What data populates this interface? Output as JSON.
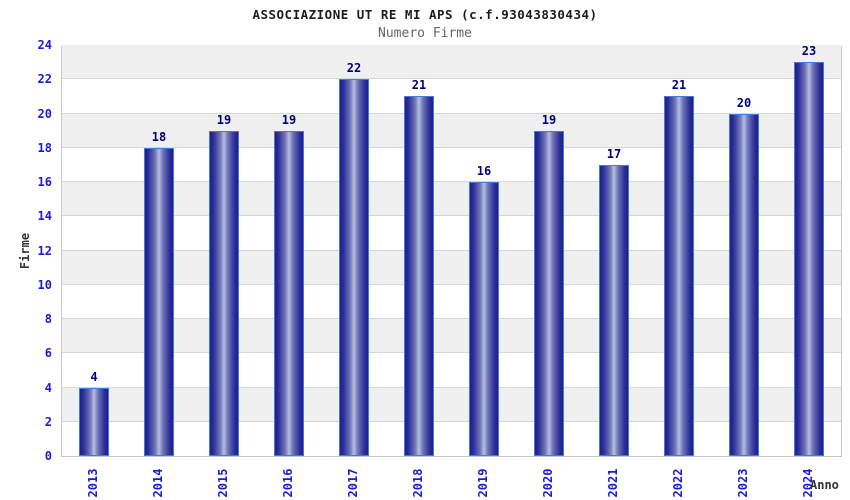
{
  "header": {
    "title": "ASSOCIAZIONE UT RE MI APS (c.f.93043830434)",
    "subtitle": "Numero Firme"
  },
  "chart_data": {
    "type": "bar",
    "title": "ASSOCIAZIONE UT RE MI APS (c.f.93043830434)",
    "subtitle": "Numero Firme",
    "xlabel": "Anno",
    "ylabel": "Firme",
    "categories": [
      "2013",
      "2014",
      "2015",
      "2016",
      "2017",
      "2018",
      "2019",
      "2020",
      "2021",
      "2022",
      "2023",
      "2024"
    ],
    "values": [
      4,
      18,
      19,
      19,
      22,
      21,
      16,
      19,
      17,
      21,
      20,
      23
    ],
    "ylim": [
      0,
      24
    ],
    "ytick_step": 2,
    "grid": true,
    "legend": false,
    "band_fill": "alternating",
    "colors": {
      "tick_label": "#1a1ad8",
      "value_label": "#00007d",
      "title": "#1c1c1c",
      "subtitle": "#666666",
      "axis_title": "#333333",
      "band_gray": "#f0f0f0",
      "gridline": "#d6d6d6",
      "plot_border": "#c8c8c8",
      "bar_border": "#3f7ce0",
      "bar_dark": "#1f1f8c",
      "bar_light": "#b8bede"
    }
  }
}
